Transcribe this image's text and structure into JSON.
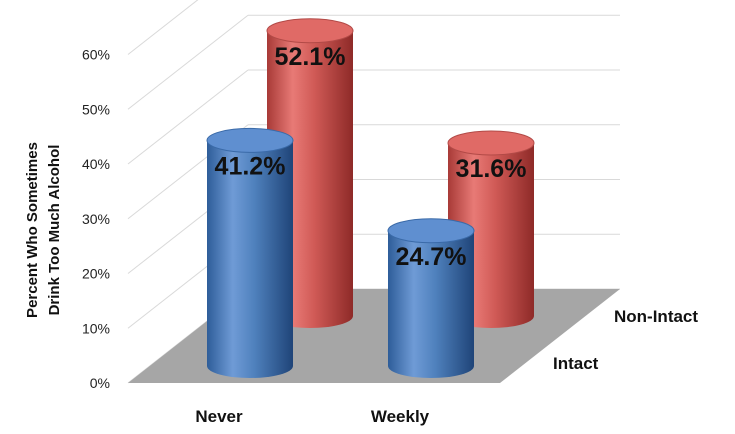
{
  "chart_data": {
    "type": "bar",
    "style": "3d-cylinder",
    "categories": [
      "Never",
      "Weekly"
    ],
    "series": [
      {
        "name": "Intact",
        "values": [
          41.2,
          24.7
        ],
        "color": "#4f81bd",
        "labels": [
          "41.2%",
          "24.7%"
        ]
      },
      {
        "name": "Non-Intact",
        "values": [
          52.1,
          31.6
        ],
        "color": "#c0504d",
        "labels": [
          "52.1%",
          "31.6%"
        ]
      }
    ],
    "ylabel": [
      "Percent Who Sometimes",
      "Drink Too Much Alcohol"
    ],
    "ylim": [
      0,
      60
    ],
    "yticks": [
      "0%",
      "10%",
      "20%",
      "30%",
      "40%",
      "50%",
      "60%"
    ],
    "grid": true,
    "floor_color": "#a6a6a6"
  }
}
